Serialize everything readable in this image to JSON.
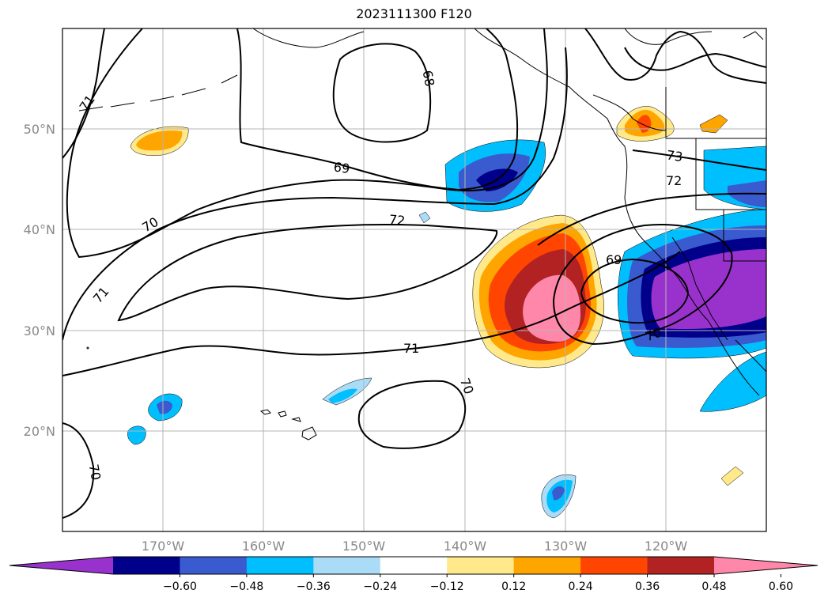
{
  "title": "2023111300 F120",
  "map": {
    "lon_range": [
      -180,
      -110
    ],
    "lat_range": [
      10,
      60
    ],
    "grid": true,
    "lat_ticks": [
      "50°N",
      "40°N",
      "30°N",
      "20°N"
    ],
    "lon_ticks": [
      "170°W",
      "160°W",
      "150°W",
      "140°W",
      "130°W",
      "120°W"
    ],
    "contour_labels": [
      "68",
      "69",
      "70",
      "71",
      "72",
      "73",
      "69",
      "70",
      "71",
      "72",
      "70",
      "71",
      "70"
    ]
  },
  "colorbar": {
    "ticks": [
      "−0.60",
      "−0.48",
      "−0.36",
      "−0.24",
      "−0.12",
      "0.12",
      "0.24",
      "0.36",
      "0.48",
      "0.60"
    ],
    "colors": [
      "#9932cc",
      "#00008b",
      "#3a5ad0",
      "#00bfff",
      "#aadcf7",
      "#ffffff",
      "#ffe98a",
      "#ffa500",
      "#ff4500",
      "#b22222",
      "#ff88aa"
    ]
  }
}
